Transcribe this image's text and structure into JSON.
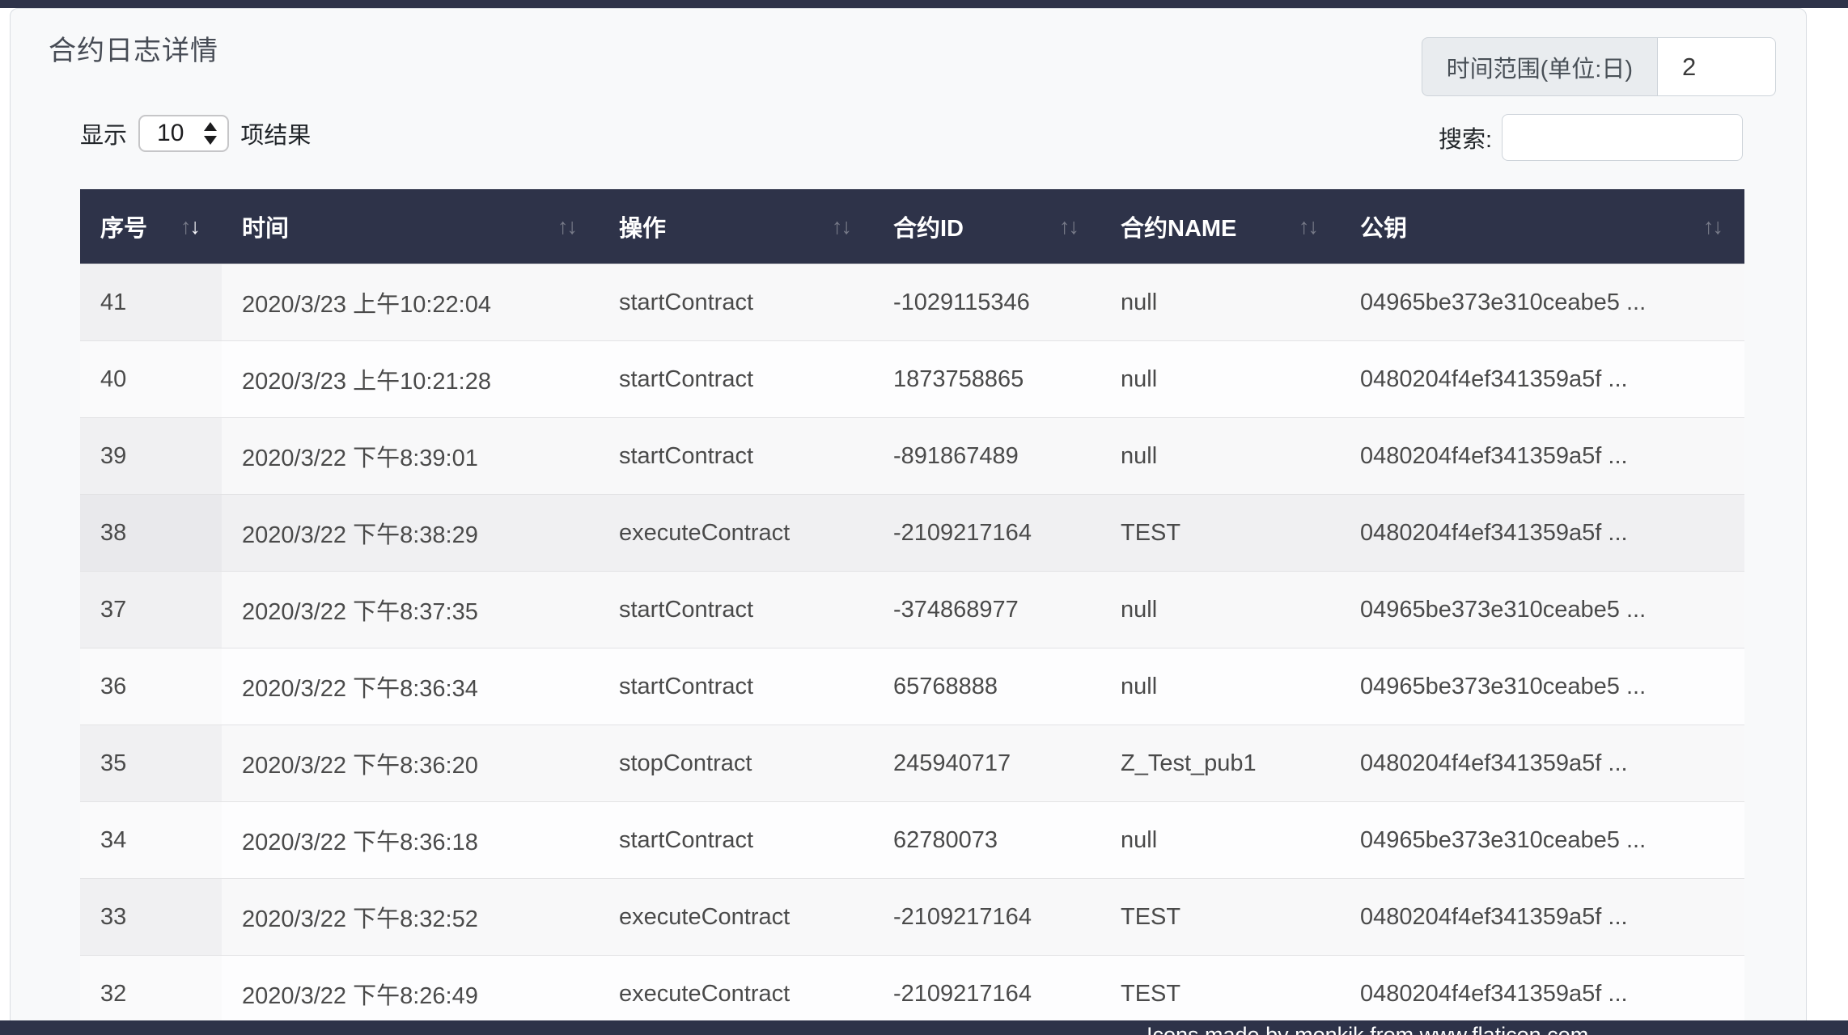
{
  "header": {
    "title": "合约日志详情"
  },
  "controls": {
    "time_range_label": "时间范围(单位:日)",
    "time_range_value": "2",
    "show_label": "显示",
    "page_length": "10",
    "results_label": "项结果",
    "search_label": "搜索:",
    "search_value": ""
  },
  "table": {
    "columns": [
      {
        "key": "seq",
        "label": "序号"
      },
      {
        "key": "time",
        "label": "时间"
      },
      {
        "key": "op",
        "label": "操作"
      },
      {
        "key": "contract_id",
        "label": "合约ID"
      },
      {
        "key": "contract_name",
        "label": "合约NAME"
      },
      {
        "key": "pubkey",
        "label": "公钥"
      }
    ],
    "sort": {
      "column": "seq",
      "direction": "desc"
    },
    "hovered_row": "38",
    "rows": [
      {
        "seq": "41",
        "time": "2020/3/23 上午10:22:04",
        "op": "startContract",
        "contract_id": "-1029115346",
        "contract_name": "null",
        "pubkey": "04965be373e310ceabe5 ..."
      },
      {
        "seq": "40",
        "time": "2020/3/23 上午10:21:28",
        "op": "startContract",
        "contract_id": "1873758865",
        "contract_name": "null",
        "pubkey": "0480204f4ef341359a5f ..."
      },
      {
        "seq": "39",
        "time": "2020/3/22 下午8:39:01",
        "op": "startContract",
        "contract_id": "-891867489",
        "contract_name": "null",
        "pubkey": "0480204f4ef341359a5f ..."
      },
      {
        "seq": "38",
        "time": "2020/3/22 下午8:38:29",
        "op": "executeContract",
        "contract_id": "-2109217164",
        "contract_name": "TEST",
        "pubkey": "0480204f4ef341359a5f ..."
      },
      {
        "seq": "37",
        "time": "2020/3/22 下午8:37:35",
        "op": "startContract",
        "contract_id": "-374868977",
        "contract_name": "null",
        "pubkey": "04965be373e310ceabe5 ..."
      },
      {
        "seq": "36",
        "time": "2020/3/22 下午8:36:34",
        "op": "startContract",
        "contract_id": "65768888",
        "contract_name": "null",
        "pubkey": "04965be373e310ceabe5 ..."
      },
      {
        "seq": "35",
        "time": "2020/3/22 下午8:36:20",
        "op": "stopContract",
        "contract_id": "245940717",
        "contract_name": "Z_Test_pub1",
        "pubkey": "0480204f4ef341359a5f ..."
      },
      {
        "seq": "34",
        "time": "2020/3/22 下午8:36:18",
        "op": "startContract",
        "contract_id": "62780073",
        "contract_name": "null",
        "pubkey": "04965be373e310ceabe5 ..."
      },
      {
        "seq": "33",
        "time": "2020/3/22 下午8:32:52",
        "op": "executeContract",
        "contract_id": "-2109217164",
        "contract_name": "TEST",
        "pubkey": "0480204f4ef341359a5f ..."
      },
      {
        "seq": "32",
        "time": "2020/3/22 下午8:26:49",
        "op": "executeContract",
        "contract_id": "-2109217164",
        "contract_name": "TEST",
        "pubkey": "0480204f4ef341359a5f ..."
      }
    ]
  },
  "footer": {
    "credit": "Icons made by monkik from www.flaticon.com"
  },
  "colors": {
    "accent_bar": "#2e3349",
    "table_header_bg": "#2e3349",
    "card_bg": "#f8f9fa",
    "input_group_bg": "#e9ecef"
  }
}
